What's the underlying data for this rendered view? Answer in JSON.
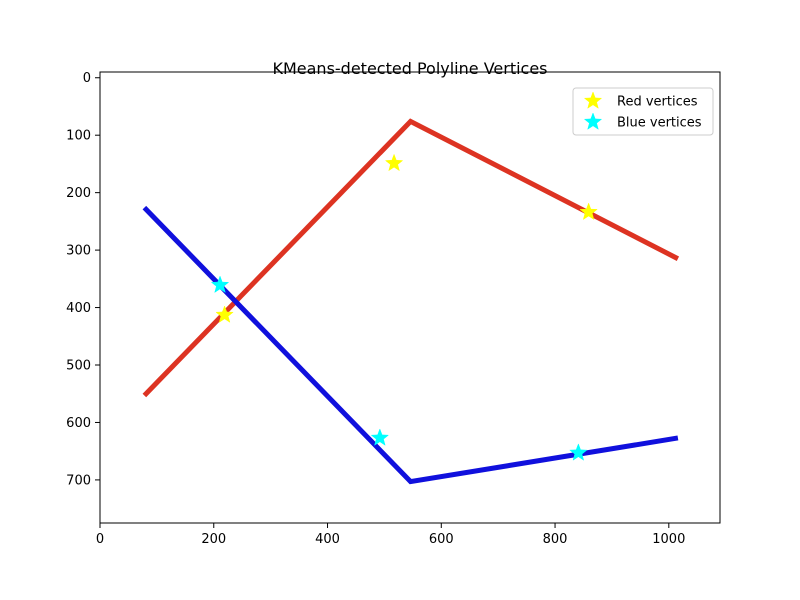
{
  "chart_data": {
    "type": "line",
    "title": "KMeans-detected Polyline Vertices",
    "xlabel": "",
    "ylabel": "",
    "xlim": [
      0,
      1090
    ],
    "ylim": [
      775,
      -10
    ],
    "y_inverted": true,
    "x_ticks": [
      0,
      200,
      400,
      600,
      800,
      1000
    ],
    "y_ticks": [
      0,
      100,
      200,
      300,
      400,
      500,
      600,
      700
    ],
    "grid": false,
    "lines": [
      {
        "color": "#dd3322",
        "points": [
          [
            78,
            553
          ],
          [
            546,
            76
          ],
          [
            1016,
            315
          ]
        ]
      },
      {
        "color": "#1010dd",
        "points": [
          [
            78,
            226
          ],
          [
            546,
            703
          ],
          [
            1016,
            627
          ]
        ]
      }
    ],
    "series": [
      {
        "name": "Red vertices",
        "marker": "star",
        "color": "#ffff00",
        "points": [
          [
            219,
            413
          ],
          [
            517,
            149
          ],
          [
            859,
            234
          ]
        ]
      },
      {
        "name": "Blue vertices",
        "marker": "star",
        "color": "#00ffff",
        "points": [
          [
            211,
            361
          ],
          [
            492,
            627
          ],
          [
            841,
            653
          ]
        ]
      }
    ],
    "legend": {
      "placement": "top-right"
    }
  }
}
